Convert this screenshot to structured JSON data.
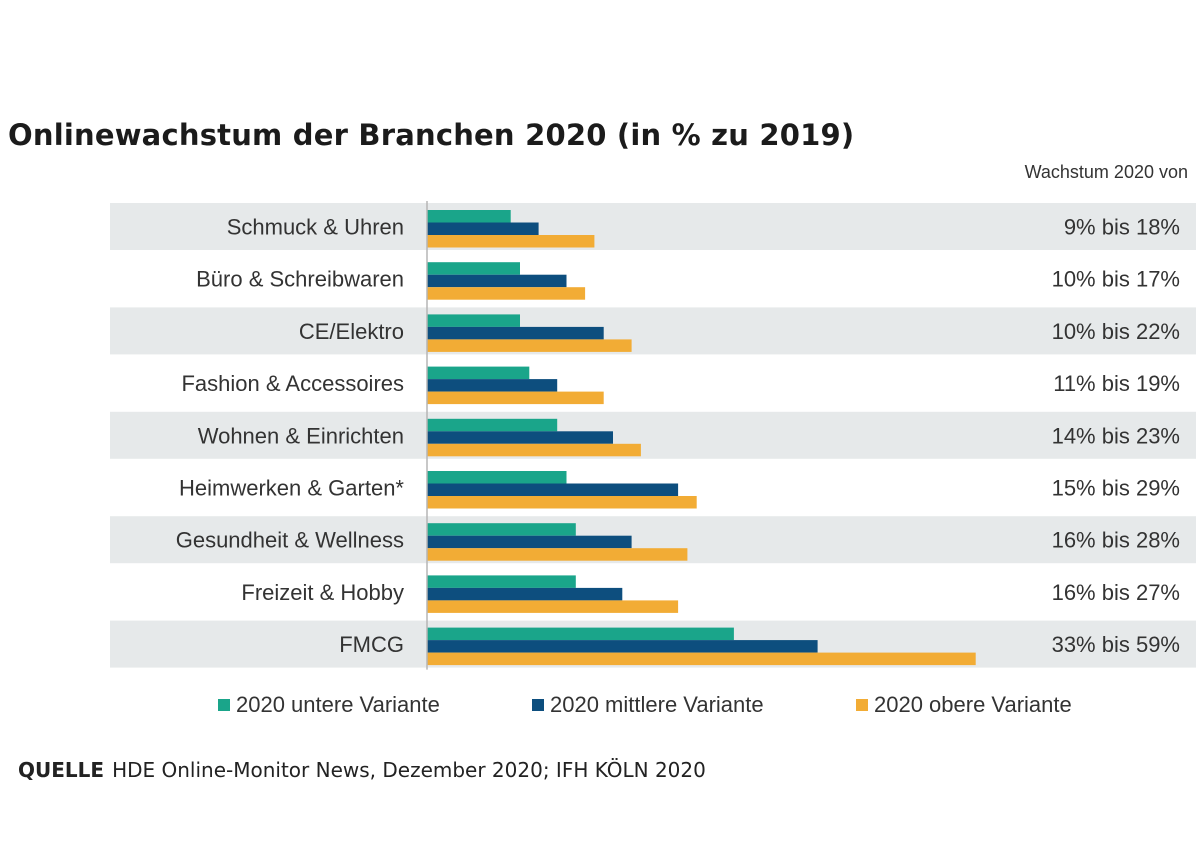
{
  "chart_data": {
    "type": "bar",
    "orientation": "horizontal",
    "title": "Onlinewachstum der Branchen 2020 (in % zu 2019)",
    "right_column_header": "Wachstum 2020 von",
    "categories": [
      "Schmuck & Uhren",
      "Büro & Schreibwaren",
      "CE/Elektro",
      "Fashion & Accessoires",
      "Wohnen & Einrichten",
      "Heimwerken & Garten*",
      "Gesundheit & Wellness",
      "Freizeit & Hobby",
      "FMCG"
    ],
    "series": [
      {
        "name": "2020 untere Variante",
        "color": "#1aa58a",
        "values": [
          9,
          10,
          10,
          11,
          14,
          15,
          16,
          16,
          33
        ]
      },
      {
        "name": "2020 mittlere Variante",
        "color": "#0d4e7e",
        "values": [
          12,
          15,
          19,
          14,
          20,
          27,
          22,
          21,
          42
        ]
      },
      {
        "name": "2020 obere Variante",
        "color": "#f2ac35",
        "values": [
          18,
          17,
          22,
          19,
          23,
          29,
          28,
          27,
          59
        ]
      }
    ],
    "range_labels": [
      "9% bis 18%",
      "10% bis 17%",
      "10% bis 22%",
      "11% bis 19%",
      "14% bis 23%",
      "15% bis 29%",
      "16% bis 28%",
      "16% bis 27%",
      "33% bis 59%"
    ],
    "xlim": [
      0,
      60
    ],
    "legend_position": "bottom",
    "band_color": "#e6e9ea"
  },
  "source": {
    "label": "QUELLE",
    "text": "HDE Online-Monitor News, Dezember 2020; IFH KÖLN 2020"
  }
}
